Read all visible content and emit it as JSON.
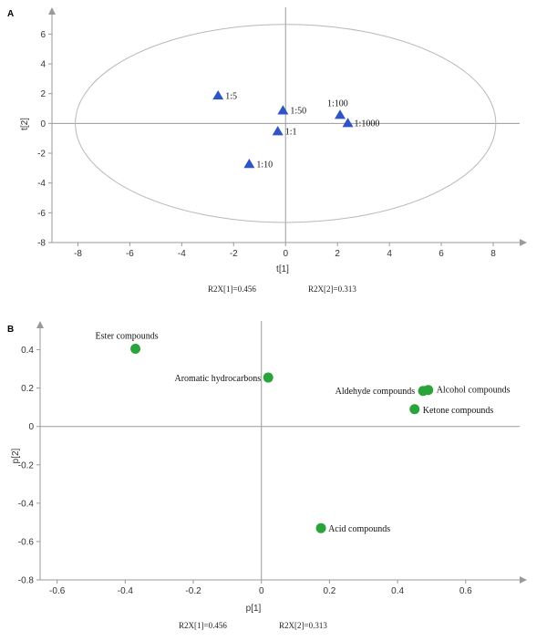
{
  "chart_data": [
    {
      "type": "scatter",
      "panel": "A",
      "xlabel": "t[1]",
      "ylabel": "t[2]",
      "xlim": [
        -9,
        9.3
      ],
      "ylim": [
        -8,
        7.8
      ],
      "xticks": [
        -8,
        -6,
        -4,
        -2,
        0,
        2,
        4,
        6,
        8
      ],
      "yticks": [
        -8,
        -6,
        -4,
        -2,
        0,
        2,
        4,
        6
      ],
      "ellipse": {
        "cx": 0,
        "cy": 0,
        "rx": 8.1,
        "ry": 6.65
      },
      "marker": "triangle",
      "color": "#2f54c6",
      "points": [
        {
          "label": "1:5",
          "x": -2.6,
          "y": 1.9
        },
        {
          "label": "1:50",
          "x": -0.1,
          "y": 0.9
        },
        {
          "label": "1:1",
          "x": -0.3,
          "y": -0.5
        },
        {
          "label": "1:10",
          "x": -1.4,
          "y": -2.7
        },
        {
          "label": "1:100",
          "x": 2.1,
          "y": 0.6
        },
        {
          "label": "1:1000",
          "x": 2.4,
          "y": 0.05
        }
      ],
      "footer": [
        "R2X[1]=0.456",
        "R2X[2]=0.313"
      ]
    },
    {
      "type": "scatter",
      "panel": "B",
      "xlabel": "p[1]",
      "ylabel": "p[2]",
      "xlim": [
        -0.65,
        0.78
      ],
      "ylim": [
        -0.8,
        0.55
      ],
      "xticks": [
        -0.6,
        -0.4,
        -0.2,
        0,
        0.2,
        0.4,
        0.6
      ],
      "yticks": [
        -0.8,
        -0.6,
        -0.4,
        -0.2,
        0,
        0.2,
        0.4
      ],
      "marker": "circle",
      "color": "#2aa33a",
      "points": [
        {
          "label": "Ester compounds",
          "x": -0.37,
          "y": 0.405
        },
        {
          "label": "Aromatic hydrocarbons",
          "x": 0.02,
          "y": 0.255
        },
        {
          "label": "Aldehyde compounds",
          "x": 0.475,
          "y": 0.185
        },
        {
          "label": "Alcohol compounds",
          "x": 0.49,
          "y": 0.19
        },
        {
          "label": "Ketone compounds",
          "x": 0.45,
          "y": 0.09
        },
        {
          "label": "Acid compounds",
          "x": 0.175,
          "y": -0.53
        }
      ],
      "footer": [
        "R2X[1]=0.456",
        "R2X[2]=0.313"
      ]
    }
  ],
  "colors": {
    "axis": "#9a9a9a",
    "ellipse": "#b8b8b8",
    "frame": "#9a9a9a"
  }
}
